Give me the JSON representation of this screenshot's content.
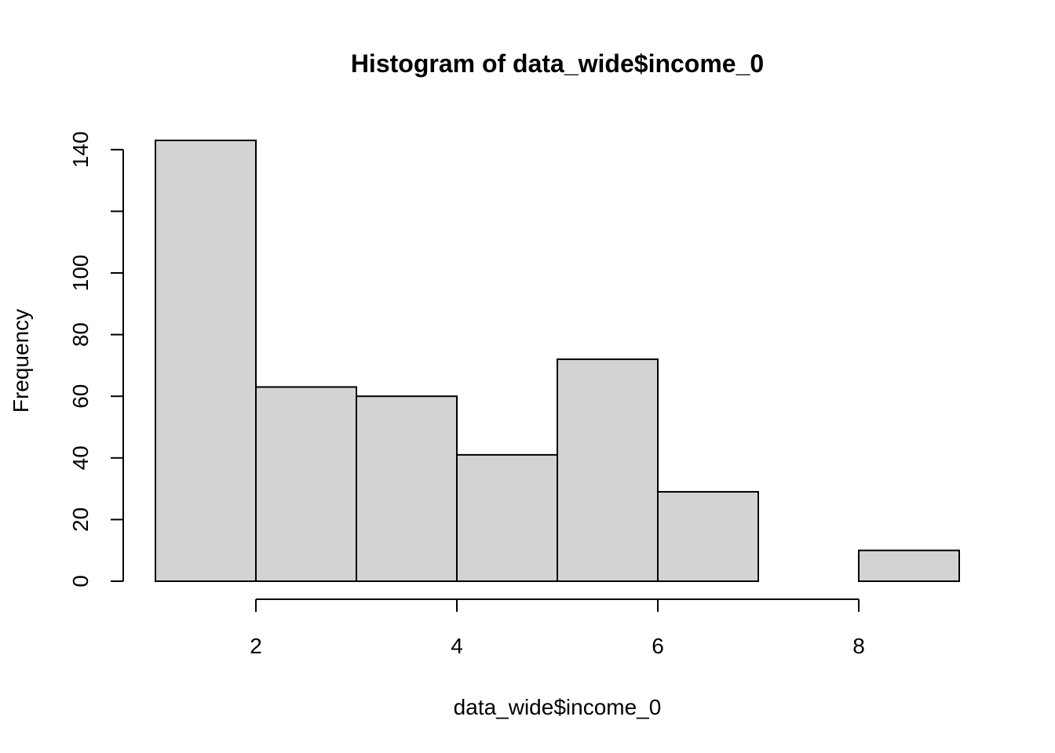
{
  "chart_data": {
    "type": "bar",
    "subtype": "histogram",
    "title": "Histogram of data_wide$income_0",
    "xlabel": "data_wide$income_0",
    "ylabel": "Frequency",
    "bins": [
      {
        "from": 1,
        "to": 2,
        "count": 143
      },
      {
        "from": 2,
        "to": 3,
        "count": 63
      },
      {
        "from": 3,
        "to": 4,
        "count": 60
      },
      {
        "from": 4,
        "to": 5,
        "count": 41
      },
      {
        "from": 5,
        "to": 6,
        "count": 72
      },
      {
        "from": 6,
        "to": 7,
        "count": 29
      },
      {
        "from": 7,
        "to": 8,
        "count": 0
      },
      {
        "from": 8,
        "to": 9,
        "count": 10
      }
    ],
    "xlim": [
      1,
      9
    ],
    "ylim": [
      0,
      143
    ],
    "x_ticks": [
      2,
      4,
      6,
      8
    ],
    "y_ticks": [
      0,
      20,
      40,
      60,
      80,
      100,
      120,
      140
    ],
    "y_tick_labels": [
      "0",
      "20",
      "40",
      "60",
      "80",
      "100",
      "",
      "140"
    ],
    "grid": false,
    "legend": "none",
    "colors": {
      "bar_fill": "#d3d3d3",
      "bar_stroke": "#000000"
    }
  }
}
